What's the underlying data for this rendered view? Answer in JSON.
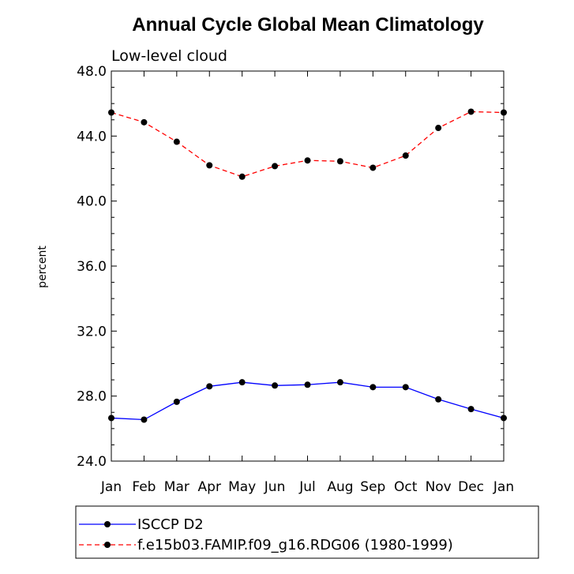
{
  "chart_data": {
    "type": "line",
    "title": "Annual Cycle Global Mean Climatology",
    "subtitle": "Low-level cloud",
    "xlabel": "",
    "ylabel": "percent",
    "categories": [
      "Jan",
      "Feb",
      "Mar",
      "Apr",
      "May",
      "Jun",
      "Jul",
      "Aug",
      "Sep",
      "Oct",
      "Nov",
      "Dec",
      "Jan"
    ],
    "ylim": [
      24.0,
      48.0
    ],
    "yticks": [
      "24.0",
      "28.0",
      "32.0",
      "36.0",
      "40.0",
      "44.0",
      "48.0"
    ],
    "grid": false,
    "legend_position": "bottom",
    "series": [
      {
        "name": "ISCCP D2",
        "color": "#0000ff",
        "dash": "solid",
        "marker": "circle",
        "values": [
          26.65,
          26.55,
          27.65,
          28.6,
          28.85,
          28.65,
          28.7,
          28.85,
          28.55,
          28.55,
          27.8,
          27.2,
          26.65
        ]
      },
      {
        "name": "f.e15b03.FAMIP.f09_g16.RDG06 (1980-1999)",
        "color": "#ff0000",
        "dash": "dashed",
        "marker": "circle",
        "values": [
          45.45,
          44.85,
          43.65,
          42.2,
          41.5,
          42.15,
          42.5,
          42.45,
          42.05,
          42.8,
          44.5,
          45.5,
          45.45
        ]
      }
    ]
  }
}
